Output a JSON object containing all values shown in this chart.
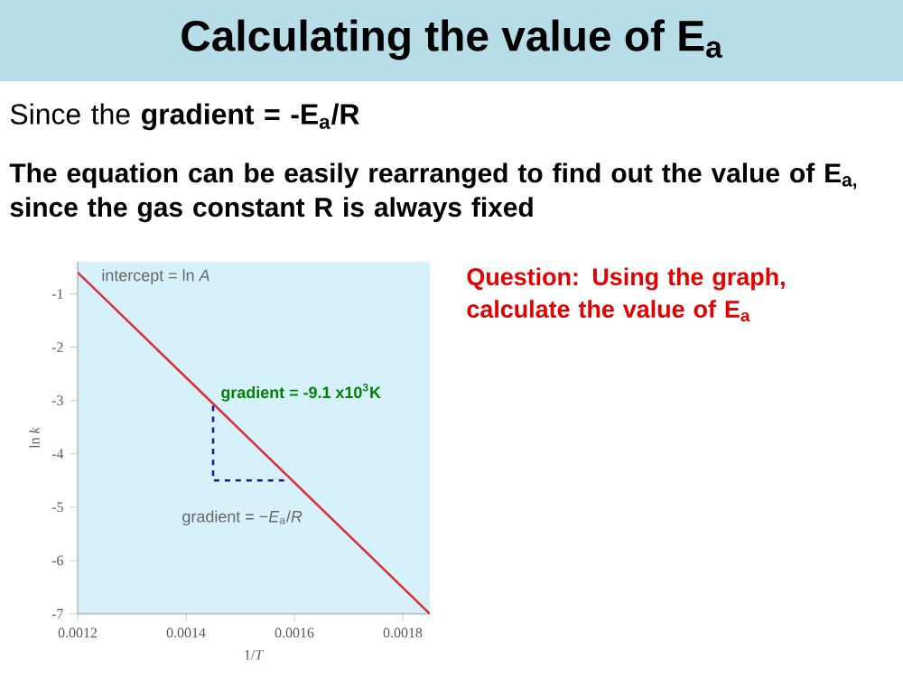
{
  "chart_data": {
    "type": "line",
    "title": "Calculating the value of E$_{a}$",
    "xlabel": "1/*T*",
    "ylabel": "ln *k*",
    "xlim": [
      0.0012,
      0.00185
    ],
    "ylim": [
      -7,
      -0.4
    ],
    "xticks": [
      0.0012,
      0.0014,
      0.0016,
      0.0018
    ],
    "yticks": [
      -7,
      -6,
      -5,
      -4,
      -3,
      -2,
      -1
    ],
    "series": [
      {
        "color": "#d9303a",
        "x": [
          0.0012,
          0.00185
        ],
        "values": [
          -0.6,
          -7
        ]
      },
      {
        "color": "#1a1aa0",
        "line_style": "dashed",
        "x": [
          0.00145,
          0.00145,
          0.00159
        ],
        "values": [
          -3.1,
          -4.5,
          -4.5
        ]
      }
    ],
    "annotations": [
      "Since the **gradient = -E$_{a}$/R**",
      "The equation can be easily rearranged to find out the value of E$_{a,}$ since the gas constant R is always fixed",
      "Question: Using the graph, calculate the value of E$_{a}$",
      {
        "text": "intercept = ln *A*",
        "x": 0.0012,
        "y": -0.6
      },
      "gradient = -9.1 x10$^{3}$K",
      "gradient = −*E*$_{a}$/*R*"
    ]
  }
}
